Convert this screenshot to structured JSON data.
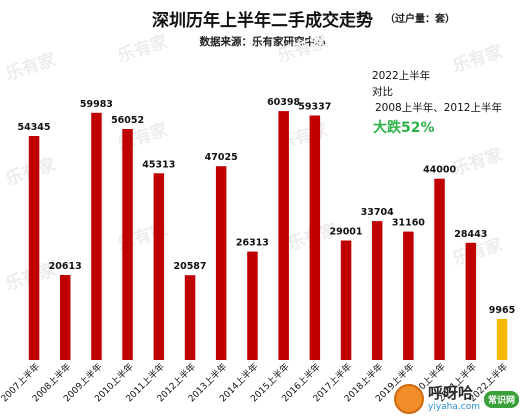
{
  "title": "深圳历年上半年二手成交走势",
  "unit": "（过户量：套）",
  "source": "数据来源：乐有家研究中心",
  "annotation": {
    "line1": "2022上半年",
    "line2": "对比",
    "line3": "2008上半年、2012上半年",
    "highlight": "大跌52%",
    "highlight_color": "#2eb24a"
  },
  "watermark": "乐有家",
  "logo": {
    "name": "呼呀哈",
    "badge": "常识网",
    "domain": "yiyaha.com"
  },
  "colors": {
    "bar": "#c00000",
    "highlight_bar": "#f5b800"
  },
  "chart_data": {
    "type": "bar",
    "categories": [
      "2007上半年",
      "2008上半年",
      "2009上半年",
      "2010上半年",
      "2011上半年",
      "2012上半年",
      "2013上半年",
      "2014上半年",
      "2015上半年",
      "2016上半年",
      "2017上半年",
      "2018上半年",
      "2019上半年",
      "2020上半年",
      "2021上半年",
      "2022上半年"
    ],
    "values": [
      54345,
      20613,
      59983,
      56052,
      45313,
      20587,
      47025,
      26313,
      60398,
      59337,
      29001,
      33704,
      31160,
      44000,
      28443,
      9965
    ],
    "highlight_index": 15,
    "ylim": [
      0,
      66000
    ],
    "grid": false,
    "legend": "none"
  }
}
